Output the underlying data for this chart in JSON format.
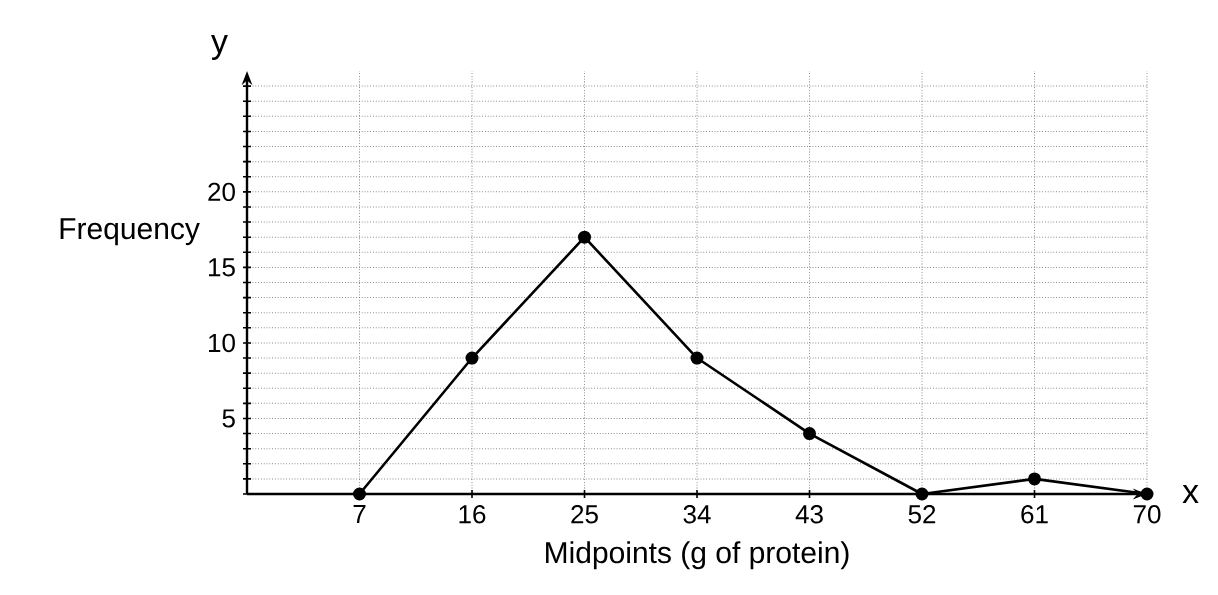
{
  "chart_data": {
    "type": "line",
    "xlabel": "Midpoints (g of protein)",
    "ylabel": "Frequency",
    "annotations": [
      "y",
      "x"
    ],
    "x": [
      7,
      16,
      25,
      34,
      43,
      52,
      61,
      70
    ],
    "series": [
      {
        "color": "#000000",
        "values": [
          0,
          9,
          17,
          9,
          4,
          0,
          1,
          0
        ]
      }
    ],
    "xlim": [
      -2,
      70
    ],
    "ylim": [
      0,
      28
    ],
    "xticks": [
      7,
      16,
      25,
      34,
      43,
      52,
      61,
      70
    ],
    "yticks": [
      {
        "value": 0,
        "label": null
      },
      {
        "value": 1,
        "label": null
      },
      {
        "value": 2,
        "label": null
      },
      {
        "value": 3,
        "label": null
      },
      {
        "value": 4,
        "label": null
      },
      5,
      {
        "value": 6,
        "label": null
      },
      {
        "value": 7,
        "label": null
      },
      {
        "value": 8,
        "label": null
      },
      {
        "value": 9,
        "label": null
      },
      10,
      {
        "value": 11,
        "label": null
      },
      {
        "value": 12,
        "label": null
      },
      {
        "value": 13,
        "label": null
      },
      {
        "value": 14,
        "label": null
      },
      15,
      {
        "value": 16,
        "label": null
      },
      {
        "value": 17,
        "label": null
      },
      {
        "value": 18,
        "label": null
      },
      {
        "value": 19,
        "label": null
      },
      20,
      {
        "value": 21,
        "label": null
      },
      {
        "value": 22,
        "label": null
      },
      {
        "value": 23,
        "label": null
      },
      {
        "value": 24,
        "label": null
      },
      {
        "value": 25,
        "label": null
      },
      {
        "value": 26,
        "label": null
      },
      {
        "value": 27,
        "label": null
      }
    ],
    "grid": true,
    "marker": "circle",
    "line_style": "solid"
  }
}
